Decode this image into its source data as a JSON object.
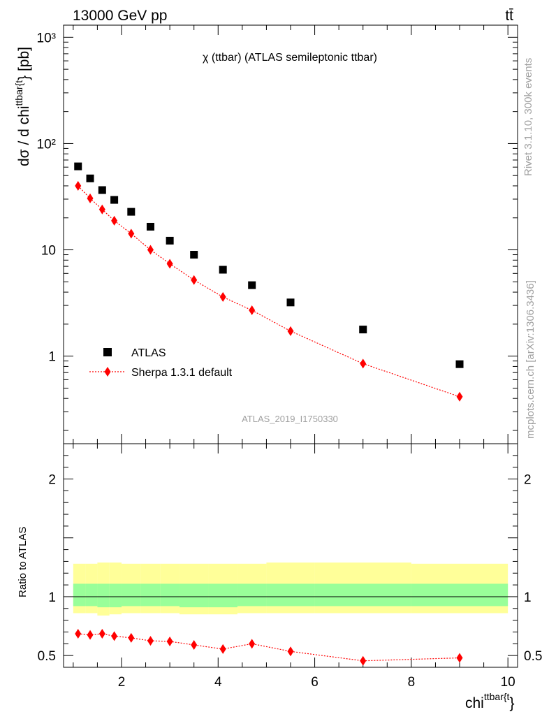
{
  "header": {
    "energy_label": "13000 GeV pp",
    "process_label": "tt̄",
    "subtitle": "χ (ttbar) (ATLAS semileptonic ttbar)",
    "analysis_id": "ATLAS_2019_I1750330",
    "side_rivet": "Rivet 3.1.10,  300k events",
    "side_site": "mcplots.cern.ch [arXiv:1306.3436]"
  },
  "chart_data": [
    {
      "type": "scatter",
      "panel": "main",
      "ylabel": "dσ / d chi^{ttbar{t}} [pb]",
      "yscale": "log",
      "ylim": [
        0.15,
        1300
      ],
      "xlim": [
        0.8,
        10.2
      ],
      "yticks": [
        "1",
        "10",
        "10²",
        "10³"
      ],
      "legend_position": "bottom-left",
      "series": [
        {
          "name": "ATLAS",
          "marker": "square",
          "color": "#000000",
          "x": [
            1.1,
            1.35,
            1.6,
            1.85,
            2.2,
            2.6,
            3.0,
            3.5,
            4.1,
            4.7,
            5.5,
            7.0,
            9.0
          ],
          "y": [
            61,
            47,
            36.5,
            29.5,
            22.8,
            16.5,
            12.2,
            9.0,
            6.5,
            4.65,
            3.2,
            1.78,
            0.84
          ]
        },
        {
          "name": "Sherpa 1.3.1 default",
          "marker": "diamond",
          "line": "dotted",
          "color": "#ff0000",
          "x": [
            1.1,
            1.35,
            1.6,
            1.85,
            2.2,
            2.6,
            3.0,
            3.5,
            4.1,
            4.7,
            5.5,
            7.0,
            9.0
          ],
          "y": [
            40,
            30.5,
            24,
            18.8,
            14.2,
            10.0,
            7.4,
            5.2,
            3.6,
            2.7,
            1.72,
            0.85,
            0.415
          ]
        }
      ]
    },
    {
      "type": "line",
      "panel": "ratio",
      "xlabel": "chi^{ttbar{t}}",
      "ylabel": "Ratio to ATLAS",
      "ylim": [
        0.4,
        2.3
      ],
      "xlim": [
        0.8,
        10.2
      ],
      "xticks": [
        2,
        4,
        6,
        8,
        10
      ],
      "yticks": [
        "0.5",
        "1",
        "2"
      ],
      "bands": {
        "bin_edges": [
          1.0,
          1.25,
          1.5,
          1.75,
          2.0,
          2.4,
          2.8,
          3.2,
          3.8,
          4.4,
          5.0,
          6.0,
          8.0,
          10.0
        ],
        "yellow_low": [
          0.86,
          0.86,
          0.84,
          0.85,
          0.86,
          0.86,
          0.86,
          0.85,
          0.85,
          0.86,
          0.86,
          0.86,
          0.86
        ],
        "yellow_high": [
          1.28,
          1.28,
          1.29,
          1.29,
          1.28,
          1.28,
          1.28,
          1.28,
          1.28,
          1.28,
          1.29,
          1.29,
          1.28
        ],
        "green_low": [
          0.92,
          0.92,
          0.91,
          0.91,
          0.92,
          0.92,
          0.92,
          0.91,
          0.91,
          0.92,
          0.92,
          0.92,
          0.92
        ],
        "green_high": [
          1.11,
          1.11,
          1.11,
          1.11,
          1.11,
          1.11,
          1.11,
          1.11,
          1.11,
          1.11,
          1.11,
          1.11,
          1.11
        ]
      },
      "series": [
        {
          "name": "Sherpa 1.3.1 default",
          "color": "#ff0000",
          "x": [
            1.1,
            1.35,
            1.6,
            1.85,
            2.2,
            2.6,
            3.0,
            3.5,
            4.1,
            4.7,
            5.5,
            7.0,
            9.0
          ],
          "y": [
            0.685,
            0.675,
            0.685,
            0.665,
            0.65,
            0.625,
            0.62,
            0.59,
            0.555,
            0.6,
            0.535,
            0.455,
            0.48
          ]
        }
      ]
    }
  ]
}
